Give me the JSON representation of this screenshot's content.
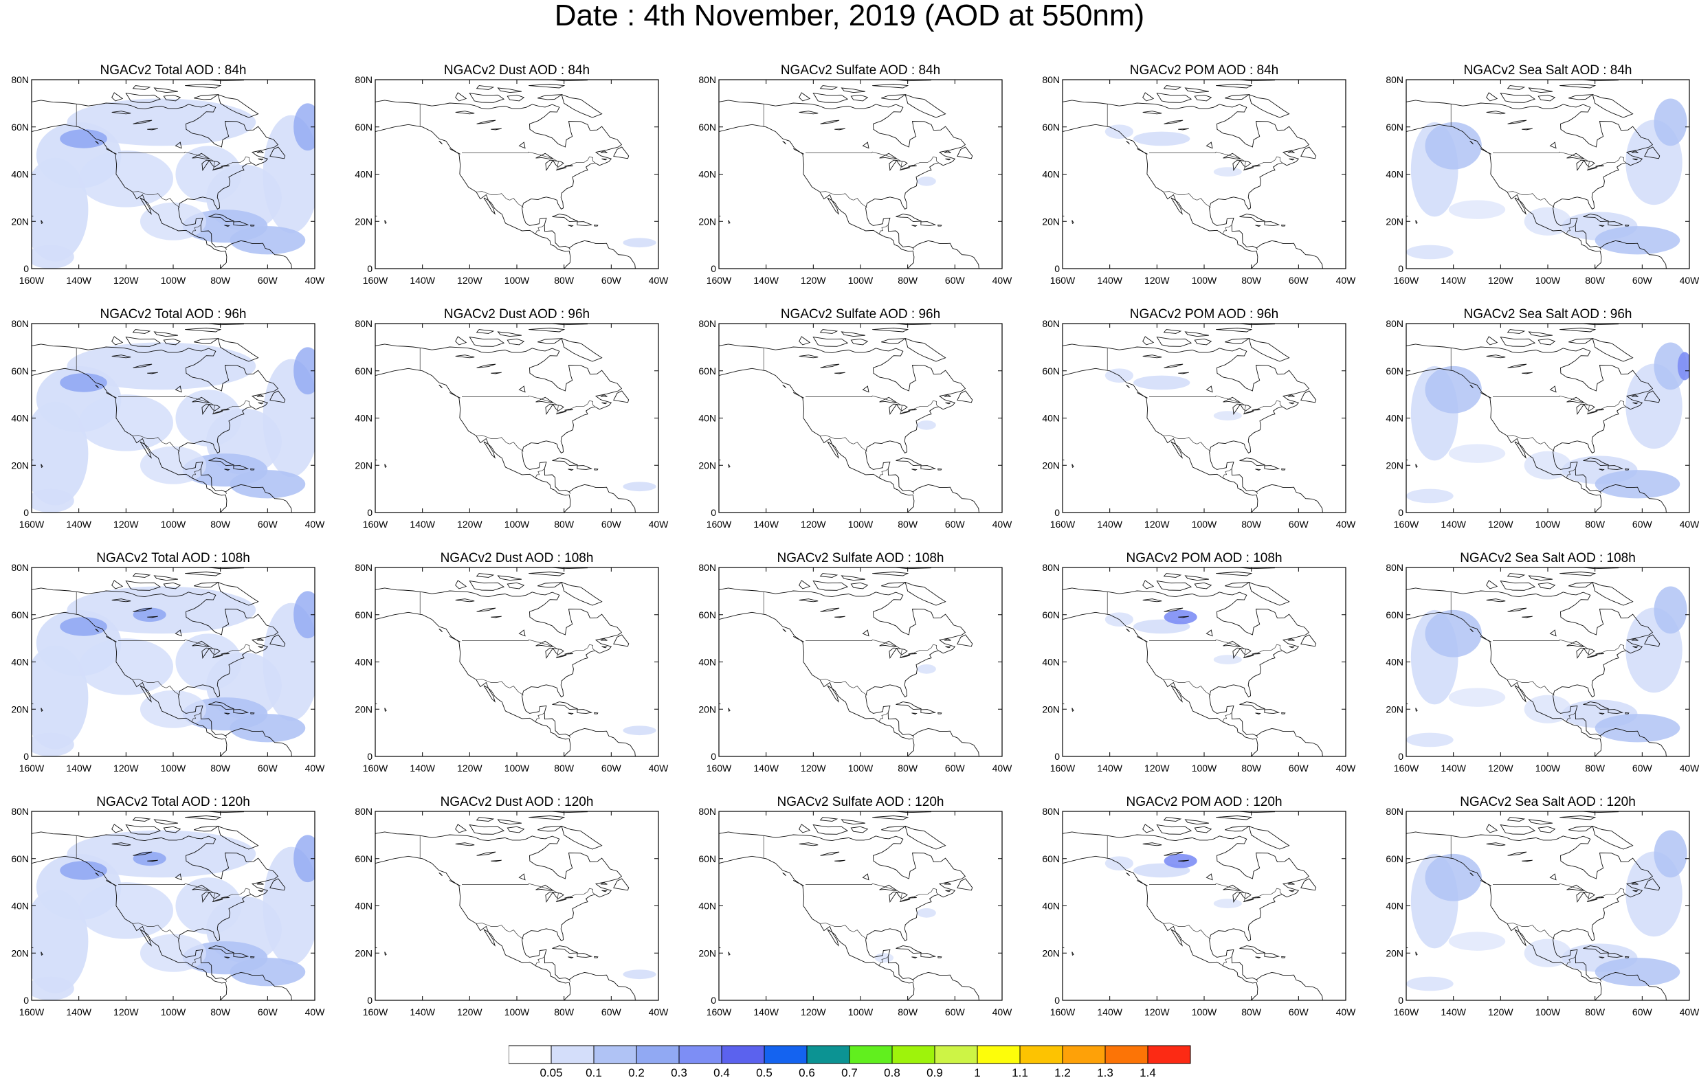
{
  "title": "Date : 4th November, 2019 (AOD at 550nm)",
  "panels": [
    {
      "title": "NGACv2 Total AOD : 84h"
    },
    {
      "title": "NGACv2 Dust AOD : 84h"
    },
    {
      "title": "NGACv2 Sulfate AOD : 84h"
    },
    {
      "title": "NGACv2 POM AOD : 84h"
    },
    {
      "title": "NGACv2 Sea Salt AOD : 84h"
    },
    {
      "title": "NGACv2 Total AOD : 96h"
    },
    {
      "title": "NGACv2 Dust AOD : 96h"
    },
    {
      "title": "NGACv2 Sulfate AOD : 96h"
    },
    {
      "title": "NGACv2 POM AOD : 96h"
    },
    {
      "title": "NGACv2 Sea Salt AOD : 96h"
    },
    {
      "title": "NGACv2 Total AOD : 108h"
    },
    {
      "title": "NGACv2 Dust AOD : 108h"
    },
    {
      "title": "NGACv2 Sulfate AOD : 108h"
    },
    {
      "title": "NGACv2 POM AOD : 108h"
    },
    {
      "title": "NGACv2 Sea Salt AOD : 108h"
    },
    {
      "title": "NGACv2 Total AOD : 120h"
    },
    {
      "title": "NGACv2 Dust AOD : 120h"
    },
    {
      "title": "NGACv2 Sulfate AOD : 120h"
    },
    {
      "title": "NGACv2 POM AOD : 120h"
    },
    {
      "title": "NGACv2 Sea Salt  AOD : 120h"
    }
  ],
  "axes": {
    "lat_ticks": [
      "80N",
      "60N",
      "40N",
      "20N",
      "0"
    ],
    "lon_ticks": [
      "160W",
      "140W",
      "120W",
      "100W",
      "80W",
      "60W",
      "40W"
    ]
  },
  "colorbar": {
    "labels": [
      "0.05",
      "0.1",
      "0.2",
      "0.3",
      "0.4",
      "0.5",
      "0.6",
      "0.7",
      "0.8",
      "0.9",
      "1",
      "1.1",
      "1.2",
      "1.3",
      "1.4"
    ],
    "colors": [
      "#ffffff",
      "#d4defa",
      "#b0c3f5",
      "#91a9f3",
      "#7d8ef5",
      "#5b62ee",
      "#1463f0",
      "#0c9393",
      "#61ef1e",
      "#9ef30b",
      "#cdf445",
      "#fdfd0a",
      "#fdc301",
      "#fea108",
      "#fc7406",
      "#fc2a14"
    ]
  },
  "chart_data": {
    "type": "heatmap",
    "title": "Date : 4th November, 2019 (AOD at 550nm)",
    "layout_rows": [
      "84h",
      "96h",
      "108h",
      "120h"
    ],
    "layout_cols": [
      "Total",
      "Dust",
      "Sulfate",
      "POM",
      "Sea Salt"
    ],
    "lon_range": [
      -160,
      -40
    ],
    "lat_range": [
      0,
      80
    ],
    "levels": [
      0.05,
      0.1,
      0.2,
      0.3,
      0.4,
      0.5,
      0.6,
      0.7,
      0.8,
      0.9,
      1,
      1.1,
      1.2,
      1.3,
      1.4
    ]
  }
}
